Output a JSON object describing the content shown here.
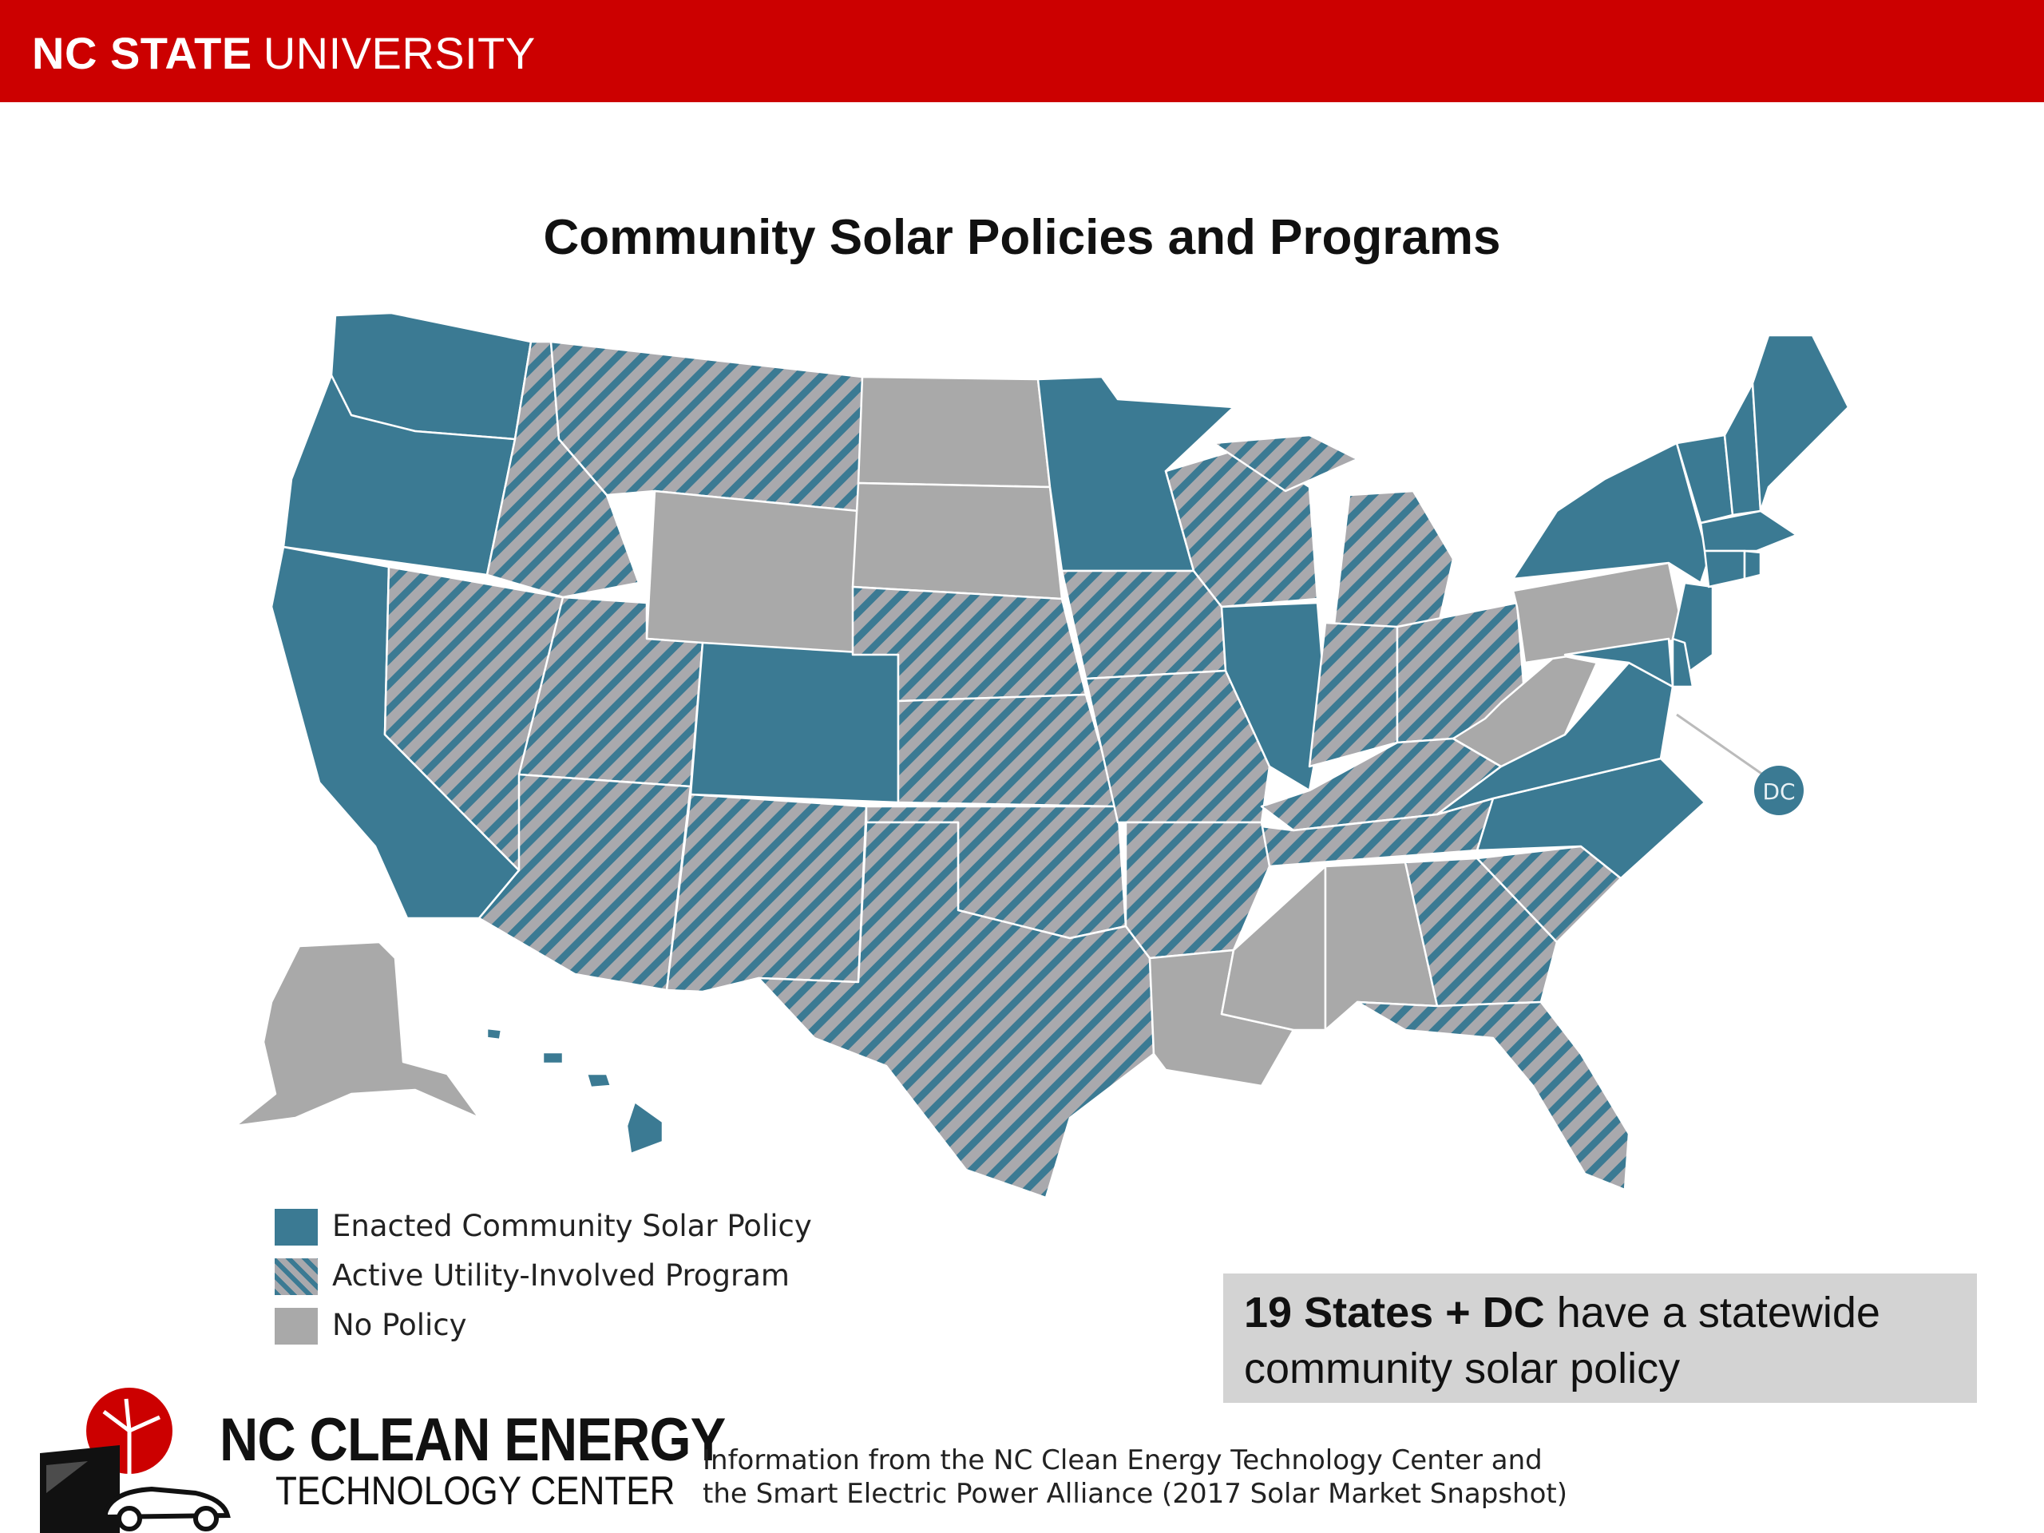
{
  "header": {
    "brand_bold": "NC STATE",
    "brand_regular": "UNIVERSITY",
    "bar_color": "#cc0000"
  },
  "map": {
    "title": "Community Solar Policies and Programs",
    "categories": [
      {
        "key": "enacted",
        "label": "Enacted Community Solar Policy",
        "color": "#3b7a93"
      },
      {
        "key": "utility",
        "label": "Active Utility-Involved Program",
        "color": "#a9a9ad",
        "stripe_color": "#3b7a93"
      },
      {
        "key": "none",
        "label": "No Policy",
        "color": "#a9a9a9"
      }
    ],
    "dc_label": "DC",
    "states": {
      "enacted": [
        "WA",
        "OR",
        "CA",
        "CO",
        "MN",
        "IL",
        "NY",
        "VT",
        "NH",
        "ME",
        "MA",
        "CT",
        "RI",
        "NJ",
        "MD",
        "DE",
        "VA",
        "NC",
        "HI",
        "DC"
      ],
      "utility": [
        "MT",
        "ID",
        "NV",
        "UT",
        "AZ",
        "NM",
        "TX",
        "NE",
        "KS",
        "OK",
        "IA",
        "MO",
        "AR",
        "WI",
        "MI",
        "IN",
        "OH",
        "KY",
        "TN",
        "SC",
        "GA",
        "FL"
      ],
      "none": [
        "ND",
        "SD",
        "WY",
        "PA",
        "WV",
        "LA",
        "MS",
        "AL",
        "AK"
      ]
    }
  },
  "callout": {
    "bold": "19 States + DC",
    "text": "have a statewide community solar policy"
  },
  "logo": {
    "line1": "NC CLEAN ENERGY",
    "line2": "TECHNOLOGY CENTER"
  },
  "source_note": "Information from the NC Clean Energy Technology Center and the Smart Electric Power Alliance (2017 Solar Market Snapshot)"
}
